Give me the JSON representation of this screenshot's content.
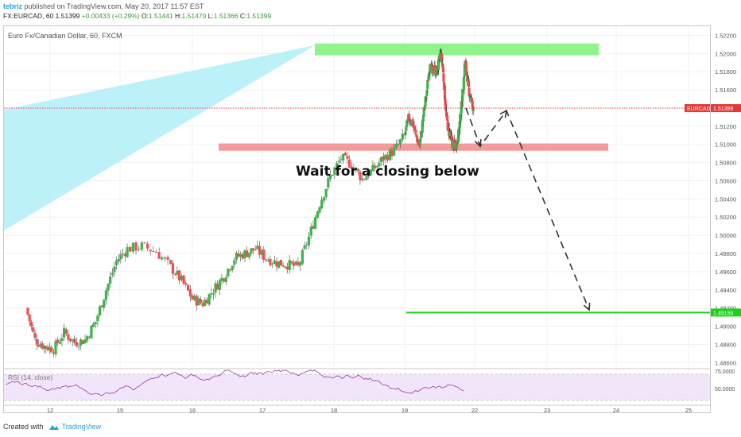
{
  "header": {
    "author": "tebriz",
    "published_text": "published on TradingView.com, May 20, 2017 11:57 EST",
    "symbol_line": "FX:EURCAD, 60",
    "last_price": "1.51399",
    "change": "+0.00433 (+0.29%)",
    "open_label": "O:",
    "open_value": "1.51441",
    "high_label": "H:",
    "high_value": "1.51470",
    "low_label": "L:",
    "low_value": "1.51366",
    "close_label": "C:",
    "close_value": "1.51399"
  },
  "symbol_title": "Euro Fx/Canadian Dollar, 60, FXCM",
  "annotation": "Wait for a closing below",
  "footer": {
    "created_with": "Created with",
    "brand": "TradingView"
  },
  "colors": {
    "bull": "#39b54a",
    "bear": "#ef4f4f",
    "resistance_zone": "#8ff58a",
    "support_zone": "#f59a9a",
    "fan": "#b6f0f8",
    "target_line": "#1bd01b",
    "current_price": "#e53935",
    "rsi_line": "#9b3b9b",
    "rsi_bg": "#f1e5fa"
  },
  "chart_data": {
    "type": "candlestick",
    "title": "Euro Fx/Canadian Dollar, 60, FXCM",
    "symbol": "EURCAD",
    "y_ticks": [
      "1.52200",
      "1.52000",
      "1.51800",
      "1.51600",
      "1.51400",
      "1.51200",
      "1.51000",
      "1.50800",
      "1.50600",
      "1.50400",
      "1.50200",
      "1.50000",
      "1.49800",
      "1.49600",
      "1.49400",
      "1.49200",
      "1.49000",
      "1.48800",
      "1.48600"
    ],
    "ylim": [
      1.4855,
      1.523
    ],
    "x_ticks": [
      "12",
      "15",
      "16",
      "17",
      "18",
      "19",
      "22",
      "23",
      "24",
      "25"
    ],
    "current_price_label": "EURCAD",
    "current_price": "1.51399",
    "target_price": "1.49150",
    "resistance_zone": [
      1.5198,
      1.5211
    ],
    "support_zone": [
      1.5093,
      1.5101
    ],
    "projection_path": [
      {
        "day": 18.9,
        "price": 1.514
      },
      {
        "day": 19.25,
        "price": 1.5098
      },
      {
        "day": 19.55,
        "price": 1.5137
      },
      {
        "day": 20.25,
        "price": 1.4918
      }
    ],
    "candle_path": [
      [
        11.6,
        1.492
      ],
      [
        11.75,
        1.4885
      ],
      [
        11.9,
        1.4878
      ],
      [
        12.05,
        1.4875
      ],
      [
        12.2,
        1.4893
      ],
      [
        12.35,
        1.4882
      ],
      [
        12.5,
        1.4885
      ],
      [
        12.65,
        1.4905
      ],
      [
        12.8,
        1.494
      ],
      [
        12.95,
        1.4972
      ],
      [
        13.1,
        1.4985
      ],
      [
        13.3,
        1.4988
      ],
      [
        13.5,
        1.4982
      ],
      [
        13.7,
        1.4965
      ],
      [
        13.85,
        1.495
      ],
      [
        14.0,
        1.493
      ],
      [
        14.15,
        1.4925
      ],
      [
        14.3,
        1.494
      ],
      [
        14.45,
        1.4955
      ],
      [
        14.6,
        1.4975
      ],
      [
        14.75,
        1.498
      ],
      [
        14.9,
        1.4985
      ],
      [
        15.05,
        1.4975
      ],
      [
        15.2,
        1.497
      ],
      [
        15.35,
        1.4968
      ],
      [
        15.5,
        1.4965
      ],
      [
        15.65,
        1.4998
      ],
      [
        15.8,
        1.5035
      ],
      [
        15.95,
        1.5065
      ],
      [
        16.1,
        1.5085
      ],
      [
        16.25,
        1.5078
      ],
      [
        16.4,
        1.5062
      ],
      [
        16.55,
        1.5072
      ],
      [
        16.7,
        1.5085
      ],
      [
        16.85,
        1.5093
      ],
      [
        17.0,
        1.511
      ],
      [
        17.15,
        1.5128
      ],
      [
        17.3,
        1.5125
      ],
      [
        17.45,
        1.511
      ],
      [
        17.6,
        1.5098
      ],
      [
        17.75,
        1.513
      ],
      [
        17.9,
        1.516
      ],
      [
        18.05,
        1.5192
      ],
      [
        18.2,
        1.5178
      ],
      [
        18.35,
        1.5184
      ],
      [
        18.5,
        1.5178
      ],
      [
        18.65,
        1.5186
      ],
      [
        18.8,
        1.52
      ],
      [
        18.95,
        1.519
      ],
      [
        19.1,
        1.516
      ],
      [
        19.25,
        1.5128
      ],
      [
        19.4,
        1.5116
      ],
      [
        19.55,
        1.5108
      ],
      [
        19.7,
        1.51
      ],
      [
        19.85,
        1.5098
      ],
      [
        20.0,
        1.5102
      ],
      [
        20.15,
        1.5113
      ],
      [
        20.3,
        1.5137
      ],
      [
        20.45,
        1.516
      ],
      [
        20.6,
        1.5192
      ],
      [
        20.75,
        1.5175
      ],
      [
        20.9,
        1.5158
      ],
      [
        21.05,
        1.5148
      ],
      [
        21.2,
        1.514
      ]
    ],
    "rsi": {
      "label": "RSI (14, close)",
      "y_ticks": [
        "75.0000",
        "50.0000"
      ],
      "levels": [
        70,
        30
      ]
    }
  }
}
